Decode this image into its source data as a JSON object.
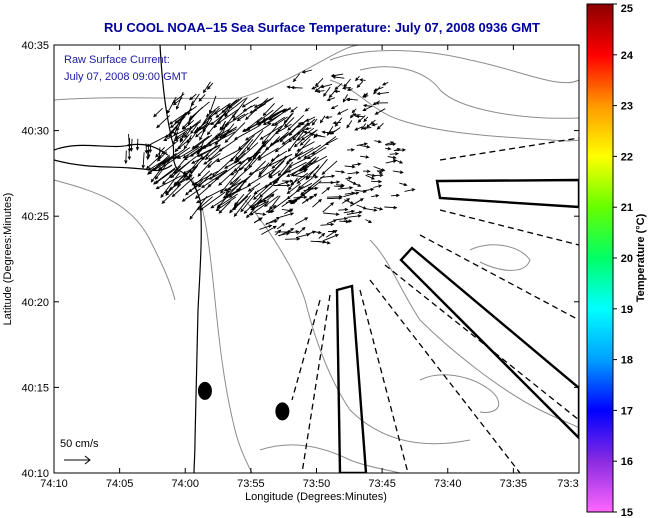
{
  "chart_data": {
    "type": "map",
    "title": "RU COOL  NOAA–15  Sea Surface Temperature:  July 07, 2008 0936 GMT",
    "xlabel": "Longitude (Degrees:Minutes)",
    "ylabel": "Latitude (Degrees:Minutes)",
    "x_ticks": [
      "74:10",
      "74:05",
      "74:00",
      "73:55",
      "73:50",
      "73:45",
      "73:40",
      "73:35",
      "73:3"
    ],
    "y_ticks": [
      "40:10",
      "40:15",
      "40:20",
      "40:25",
      "40:30",
      "40:35"
    ],
    "xlim_minutes": [
      -10,
      30
    ],
    "ylim_minutes": [
      0,
      25
    ],
    "annotations": {
      "current_label_line1": "Raw Surface Current:",
      "current_label_line2": "July 07, 2008 09:00 GMT",
      "scale_label": "50 cm/s"
    },
    "colorbar": {
      "label": "Temperature (°C)",
      "min": 15,
      "max": 25,
      "ticks": [
        "15",
        "16",
        "17",
        "18",
        "19",
        "20",
        "21",
        "22",
        "23",
        "24",
        "25"
      ],
      "colors": [
        "#ff66ff",
        "#8a2be2",
        "#0000ff",
        "#00a0ff",
        "#00ffff",
        "#00ff66",
        "#66ff00",
        "#ffff00",
        "#ff9900",
        "#ff0000",
        "#8b0000"
      ]
    },
    "markers": [
      {
        "name": "buoy-left",
        "lon_min": 1.5,
        "lat_min": 4.8
      },
      {
        "name": "buoy-right",
        "lon_min": 7.4,
        "lat_min": 3.6
      }
    ]
  },
  "colors": {
    "title": "#00009c",
    "annotation": "#1a1aa0",
    "axis": "#000000",
    "coast": "#000000",
    "bathy": "#8c8c8c",
    "vector": "#000000"
  }
}
